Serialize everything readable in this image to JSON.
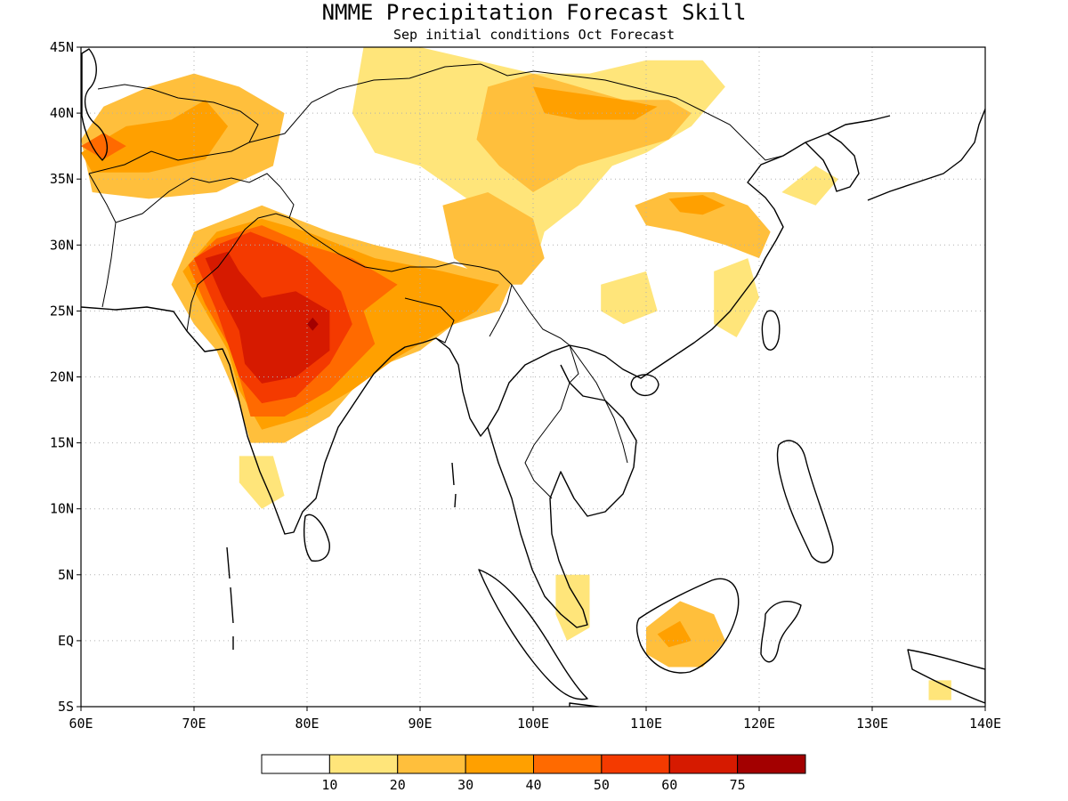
{
  "title": "NMME Precipitation Forecast Skill",
  "subtitle": "Sep initial conditions  Oct Forecast",
  "map": {
    "lon_range": [
      60,
      140
    ],
    "lat_range": [
      -5,
      45
    ],
    "x_ticks": [
      {
        "lon": 60,
        "label": "60E"
      },
      {
        "lon": 70,
        "label": "70E"
      },
      {
        "lon": 80,
        "label": "80E"
      },
      {
        "lon": 90,
        "label": "90E"
      },
      {
        "lon": 100,
        "label": "100E"
      },
      {
        "lon": 110,
        "label": "110E"
      },
      {
        "lon": 120,
        "label": "120E"
      },
      {
        "lon": 130,
        "label": "130E"
      },
      {
        "lon": 140,
        "label": "140E"
      }
    ],
    "y_ticks": [
      {
        "lat": 45,
        "label": "45N"
      },
      {
        "lat": 40,
        "label": "40N"
      },
      {
        "lat": 35,
        "label": "35N"
      },
      {
        "lat": 30,
        "label": "30N"
      },
      {
        "lat": 25,
        "label": "25N"
      },
      {
        "lat": 20,
        "label": "20N"
      },
      {
        "lat": 15,
        "label": "15N"
      },
      {
        "lat": 10,
        "label": "10N"
      },
      {
        "lat": 5,
        "label": "5N"
      },
      {
        "lat": 0,
        "label": "EQ"
      },
      {
        "lat": -5,
        "label": "5S"
      }
    ],
    "grid": true
  },
  "colorbar": {
    "colors": [
      "#ffffff",
      "#ffe57a",
      "#ffbf3c",
      "#ffa000",
      "#ff6a00",
      "#f43a00",
      "#d61a00",
      "#a30000"
    ],
    "labels": [
      "10",
      "20",
      "30",
      "40",
      "50",
      "60",
      "75"
    ]
  },
  "chart_data": {
    "type": "heatmap",
    "title": "NMME Precipitation Forecast Skill",
    "subtitle": "Sep initial conditions  Oct Forecast",
    "xlim": [
      60,
      140
    ],
    "ylim": [
      -5,
      45
    ],
    "levels": [
      10,
      20,
      30,
      40,
      50,
      60,
      75
    ],
    "regions": [
      {
        "level": 20,
        "pts": [
          [
            60,
            38
          ],
          [
            62,
            40.5
          ],
          [
            66,
            42
          ],
          [
            70,
            43
          ],
          [
            74,
            42
          ],
          [
            78,
            40
          ],
          [
            77,
            36
          ],
          [
            72,
            34
          ],
          [
            66,
            33.5
          ],
          [
            61,
            34
          ]
        ]
      },
      {
        "level": 30,
        "pts": [
          [
            60,
            37
          ],
          [
            64,
            39
          ],
          [
            68,
            39.5
          ],
          [
            71,
            41
          ],
          [
            73,
            39
          ],
          [
            71,
            36.5
          ],
          [
            66,
            35.5
          ],
          [
            61,
            35.5
          ]
        ]
      },
      {
        "level": 40,
        "pts": [
          [
            60,
            37.5
          ],
          [
            62,
            38.5
          ],
          [
            64,
            37.5
          ],
          [
            62,
            36.5
          ]
        ]
      },
      {
        "level": 10,
        "pts": [
          [
            85,
            45
          ],
          [
            90,
            45
          ],
          [
            95,
            44
          ],
          [
            100,
            43
          ],
          [
            105,
            43
          ],
          [
            110,
            44
          ],
          [
            115,
            44
          ],
          [
            117,
            42
          ],
          [
            114,
            39
          ],
          [
            110,
            37
          ],
          [
            107,
            36
          ],
          [
            104,
            33
          ],
          [
            101,
            31
          ],
          [
            100,
            28
          ],
          [
            98,
            30
          ],
          [
            95,
            33
          ],
          [
            90,
            36
          ],
          [
            86,
            37
          ],
          [
            84,
            40
          ]
        ]
      },
      {
        "level": 20,
        "pts": [
          [
            96,
            42
          ],
          [
            100,
            43
          ],
          [
            104,
            42
          ],
          [
            108,
            41
          ],
          [
            112,
            41
          ],
          [
            114,
            40
          ],
          [
            112,
            38
          ],
          [
            108,
            37
          ],
          [
            104,
            36
          ],
          [
            100,
            34
          ],
          [
            97,
            36
          ],
          [
            95,
            38
          ]
        ]
      },
      {
        "level": 30,
        "pts": [
          [
            100,
            42
          ],
          [
            104,
            41.5
          ],
          [
            108,
            41
          ],
          [
            111,
            40.5
          ],
          [
            109,
            39.5
          ],
          [
            104,
            39.5
          ],
          [
            101,
            40
          ]
        ]
      },
      {
        "level": 20,
        "pts": [
          [
            92,
            33
          ],
          [
            96,
            34
          ],
          [
            100,
            32
          ],
          [
            101,
            29
          ],
          [
            99,
            27
          ],
          [
            96,
            27
          ],
          [
            93,
            29
          ]
        ]
      },
      {
        "level": 20,
        "pts": [
          [
            109,
            33
          ],
          [
            112,
            34
          ],
          [
            116,
            34
          ],
          [
            119,
            33
          ],
          [
            121,
            31
          ],
          [
            120,
            29
          ],
          [
            117,
            30
          ],
          [
            113,
            31
          ],
          [
            110,
            31.5
          ]
        ]
      },
      {
        "level": 30,
        "pts": [
          [
            112,
            33.5
          ],
          [
            115,
            33.8
          ],
          [
            117,
            33
          ],
          [
            115,
            32.3
          ],
          [
            113,
            32.5
          ]
        ]
      },
      {
        "level": 10,
        "pts": [
          [
            116,
            28
          ],
          [
            119,
            29
          ],
          [
            120,
            26
          ],
          [
            118,
            23
          ],
          [
            116,
            24
          ]
        ]
      },
      {
        "level": 10,
        "pts": [
          [
            106,
            27
          ],
          [
            110,
            28
          ],
          [
            111,
            25
          ],
          [
            108,
            24
          ],
          [
            106,
            25
          ]
        ]
      },
      {
        "level": 10,
        "pts": [
          [
            122,
            34
          ],
          [
            125,
            36
          ],
          [
            127,
            35
          ],
          [
            125,
            33
          ]
        ]
      },
      {
        "level": 20,
        "pts": [
          [
            68,
            27
          ],
          [
            70,
            31
          ],
          [
            73,
            32
          ],
          [
            76,
            33
          ],
          [
            79,
            32
          ],
          [
            82,
            31
          ],
          [
            86,
            30
          ],
          [
            91,
            29
          ],
          [
            95,
            28
          ],
          [
            98,
            27
          ],
          [
            97,
            25
          ],
          [
            93,
            24
          ],
          [
            90,
            22
          ],
          [
            87,
            21
          ],
          [
            84,
            19
          ],
          [
            82,
            17
          ],
          [
            78,
            15
          ],
          [
            75,
            15
          ],
          [
            74,
            18
          ],
          [
            73,
            20
          ],
          [
            72,
            22
          ],
          [
            70,
            24
          ]
        ]
      },
      {
        "level": 30,
        "pts": [
          [
            69,
            28
          ],
          [
            72,
            31
          ],
          [
            76,
            32
          ],
          [
            80,
            31
          ],
          [
            86,
            29
          ],
          [
            92,
            28
          ],
          [
            97,
            27
          ],
          [
            95,
            25
          ],
          [
            91,
            23
          ],
          [
            88,
            21.5
          ],
          [
            84,
            19
          ],
          [
            80,
            17
          ],
          [
            76,
            16
          ],
          [
            74,
            19
          ],
          [
            73,
            22
          ],
          [
            71,
            25
          ]
        ]
      },
      {
        "level": 40,
        "pts": [
          [
            69.5,
            28.5
          ],
          [
            72,
            30.5
          ],
          [
            76,
            31.5
          ],
          [
            80,
            30
          ],
          [
            84,
            29
          ],
          [
            88,
            27
          ],
          [
            85,
            25
          ],
          [
            86,
            22.5
          ],
          [
            82,
            19
          ],
          [
            78,
            17
          ],
          [
            75,
            17
          ],
          [
            74,
            20
          ],
          [
            73,
            22.5
          ],
          [
            71,
            25.5
          ]
        ]
      },
      {
        "level": 50,
        "pts": [
          [
            70,
            29
          ],
          [
            72,
            30
          ],
          [
            75,
            31
          ],
          [
            78,
            30
          ],
          [
            80,
            29
          ],
          [
            83,
            26.5
          ],
          [
            84,
            24
          ],
          [
            82,
            21
          ],
          [
            79,
            18.5
          ],
          [
            76,
            18
          ],
          [
            74,
            20
          ],
          [
            73,
            22.5
          ],
          [
            72,
            25
          ],
          [
            71,
            27
          ]
        ]
      },
      {
        "level": 60,
        "pts": [
          [
            71,
            29
          ],
          [
            73,
            29.5
          ],
          [
            74,
            28
          ],
          [
            76,
            26
          ],
          [
            79,
            26.5
          ],
          [
            82,
            25
          ],
          [
            82,
            22
          ],
          [
            79,
            20
          ],
          [
            76,
            19.5
          ],
          [
            74.5,
            21
          ],
          [
            74,
            23.5
          ],
          [
            72.5,
            26
          ]
        ]
      },
      {
        "level": 75,
        "pts": [
          [
            80,
            24
          ],
          [
            80.5,
            24.5
          ],
          [
            81,
            24
          ],
          [
            80.5,
            23.5
          ]
        ]
      },
      {
        "level": 10,
        "pts": [
          [
            74,
            14
          ],
          [
            77,
            14
          ],
          [
            78,
            11
          ],
          [
            76,
            10
          ],
          [
            74,
            12
          ]
        ]
      },
      {
        "level": 20,
        "pts": [
          [
            110,
            1
          ],
          [
            113,
            3
          ],
          [
            116,
            2
          ],
          [
            117,
            0
          ],
          [
            115,
            -2
          ],
          [
            112,
            -2
          ],
          [
            110,
            -1
          ]
        ]
      },
      {
        "level": 30,
        "pts": [
          [
            111,
            0.5
          ],
          [
            113,
            1.5
          ],
          [
            114,
            0
          ],
          [
            112,
            -0.5
          ]
        ]
      },
      {
        "level": 10,
        "pts": [
          [
            102,
            5
          ],
          [
            105,
            5
          ],
          [
            105,
            1
          ],
          [
            103,
            0
          ],
          [
            102,
            2
          ]
        ]
      },
      {
        "level": 10,
        "pts": [
          [
            135,
            -3
          ],
          [
            137,
            -3
          ],
          [
            137,
            -4.5
          ],
          [
            135,
            -4.5
          ]
        ]
      }
    ]
  }
}
